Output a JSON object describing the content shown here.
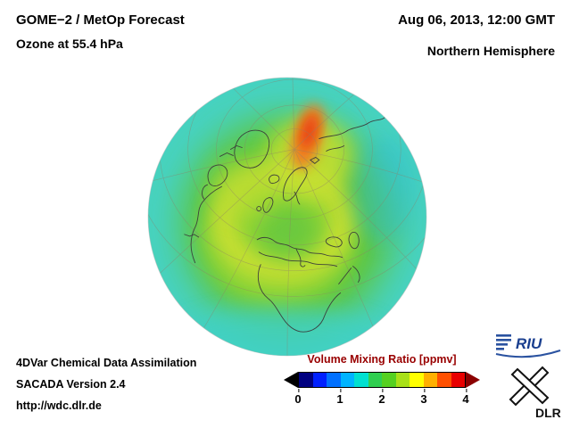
{
  "header": {
    "title_line1": "GOME−2 / MetOp Forecast",
    "title_line2": "Ozone at 55.4 hPa",
    "datetime": "Aug 06, 2013, 12:00 GMT",
    "region": "Northern Hemisphere"
  },
  "footer": {
    "line1": "4DVar Chemical Data Assimilation",
    "line2": "SACADA Version 2.4",
    "line3": "http://wdc.dlr.de"
  },
  "colorbar": {
    "label": "Volume Mixing Ratio [ppmv]",
    "label_color": "#990000",
    "ticks": [
      "0",
      "1",
      "2",
      "3",
      "4"
    ],
    "under_color": "#000000",
    "over_color": "#8b0000",
    "segments": [
      "#000080",
      "#0020ff",
      "#0070ff",
      "#00b4ff",
      "#00e0d0",
      "#30cf50",
      "#55d020",
      "#a8e018",
      "#ffff00",
      "#ffb000",
      "#ff5000",
      "#e80000"
    ]
  },
  "logos": {
    "riu": "RIU",
    "dlr": "DLR"
  },
  "chart_data": {
    "type": "heatmap",
    "title": "GOME−2 / MetOp Forecast — Ozone at 55.4 hPa",
    "datetime": "Aug 06, 2013, 12:00 GMT",
    "region": "Northern Hemisphere",
    "projection": "orthographic globe centered over Europe, North Pole near top",
    "variable": "Ozone volume mixing ratio",
    "units": "ppmv",
    "colorbar": {
      "label": "Volume Mixing Ratio [ppmv]",
      "range": [
        0,
        4
      ],
      "ticks": [
        0,
        1,
        2,
        3,
        4
      ],
      "under_arrow_color": "#000000",
      "over_arrow_color": "#8b0000",
      "segment_colors": [
        "#000080",
        "#0020ff",
        "#0070ff",
        "#00b4ff",
        "#00e0d0",
        "#30cf50",
        "#55d020",
        "#a8e018",
        "#ffff00",
        "#ffb000",
        "#ff5000",
        "#e80000"
      ]
    },
    "field_summary": [
      {
        "region": "globe rim / outer limb (tropics and far side)",
        "value_ppmv": 1.4,
        "color": "cyan-turquoise"
      },
      {
        "region": "broad mid-latitude band",
        "value_ppmv": 2.1,
        "color": "green"
      },
      {
        "region": "ring over Europe / subtropics and patch near North America",
        "value_ppmv": 2.7,
        "color": "yellow-green to yellow"
      },
      {
        "region": "localized maximum over Arctic Siberia near the pole (top of globe)",
        "value_ppmv": 3.6,
        "color": "orange with red core"
      },
      {
        "region": "smudge east of center (central Asia limb)",
        "value_ppmv": 1.7,
        "color": "blue-cyan"
      }
    ]
  }
}
